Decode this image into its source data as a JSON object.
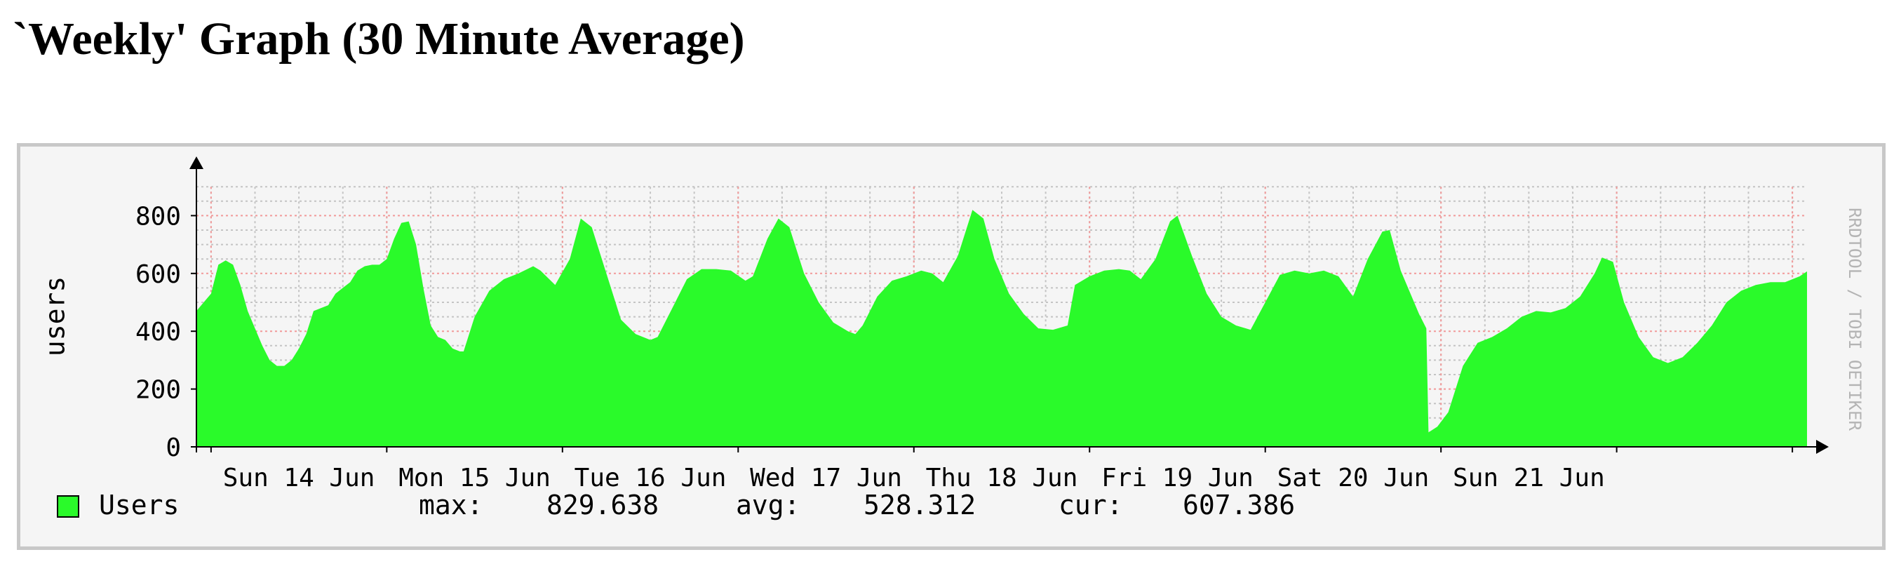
{
  "page": {
    "title": "`Weekly' Graph (30 Minute Average)"
  },
  "watermark": "RRDTOOL / TOBI OETIKER",
  "colors": {
    "area": "#2afa2a",
    "major_grid": "#f29999",
    "minor_grid": "#c4c4c4",
    "background": "#f5f5f5",
    "frame": "#c8c8c8",
    "axis": "#000000",
    "watermark": "#b4b4b4"
  },
  "legend": {
    "series_label": "Users",
    "max_label": "max:",
    "max_value": "829.638",
    "avg_label": "avg:",
    "avg_value": "528.312",
    "cur_label": "cur:",
    "cur_value": "607.386"
  },
  "chart_data": {
    "type": "area",
    "title": "`Weekly' Graph (30 Minute Average)",
    "ylabel": "users",
    "ylim": [
      0,
      900
    ],
    "yticks": [
      0,
      200,
      400,
      600,
      800
    ],
    "y_tick_labels": [
      "0",
      "200",
      "400",
      "600",
      "800"
    ],
    "x_day_labels": [
      "Sun 14 Jun",
      "Mon 15 Jun",
      "Tue 16 Jun",
      "Wed 17 Jun",
      "Thu 18 Jun",
      "Fri 19 Jun",
      "Sat 20 Jun",
      "Sun 21 Jun"
    ],
    "grid": true,
    "legend_position": "bottom-left",
    "series": [
      {
        "name": "Users",
        "color": "#2afa2a",
        "points": [
          [
            0,
            470
          ],
          [
            1,
            500
          ],
          [
            2,
            530
          ],
          [
            3,
            630
          ],
          [
            4,
            645
          ],
          [
            5,
            630
          ],
          [
            6,
            560
          ],
          [
            7,
            470
          ],
          [
            8,
            410
          ],
          [
            9,
            350
          ],
          [
            10,
            300
          ],
          [
            11,
            280
          ],
          [
            12,
            280
          ],
          [
            13,
            300
          ],
          [
            14,
            340
          ],
          [
            15,
            390
          ],
          [
            16,
            470
          ],
          [
            17,
            480
          ],
          [
            18,
            490
          ],
          [
            19,
            530
          ],
          [
            20,
            550
          ],
          [
            21,
            570
          ],
          [
            22,
            610
          ],
          [
            23,
            625
          ],
          [
            24,
            630
          ],
          [
            25,
            630
          ],
          [
            26,
            650
          ],
          [
            27,
            720
          ],
          [
            28,
            775
          ],
          [
            29,
            780
          ],
          [
            30,
            700
          ],
          [
            31,
            550
          ],
          [
            32,
            420
          ],
          [
            33,
            380
          ],
          [
            34,
            370
          ],
          [
            35,
            340
          ],
          [
            36,
            330
          ],
          [
            36.5,
            330
          ],
          [
            38,
            450
          ],
          [
            40,
            540
          ],
          [
            42,
            580
          ],
          [
            44,
            600
          ],
          [
            46,
            625
          ],
          [
            47,
            610
          ],
          [
            49,
            560
          ],
          [
            51,
            650
          ],
          [
            52.5,
            790
          ],
          [
            54,
            760
          ],
          [
            56,
            600
          ],
          [
            58,
            440
          ],
          [
            60,
            390
          ],
          [
            62,
            370
          ],
          [
            63,
            380
          ],
          [
            65,
            480
          ],
          [
            67,
            580
          ],
          [
            69,
            615
          ],
          [
            71,
            615
          ],
          [
            73,
            610
          ],
          [
            75,
            575
          ],
          [
            76,
            590
          ],
          [
            78,
            720
          ],
          [
            79.5,
            790
          ],
          [
            81,
            760
          ],
          [
            83,
            600
          ],
          [
            85,
            500
          ],
          [
            87,
            430
          ],
          [
            89,
            400
          ],
          [
            90,
            390
          ],
          [
            91,
            420
          ],
          [
            93,
            520
          ],
          [
            95,
            575
          ],
          [
            97,
            590
          ],
          [
            99,
            610
          ],
          [
            100.5,
            600
          ],
          [
            102,
            570
          ],
          [
            104,
            660
          ],
          [
            106,
            820
          ],
          [
            107.5,
            790
          ],
          [
            109,
            650
          ],
          [
            111,
            530
          ],
          [
            113,
            460
          ],
          [
            115,
            410
          ],
          [
            117,
            405
          ],
          [
            119,
            420
          ],
          [
            120,
            560
          ],
          [
            122,
            590
          ],
          [
            124,
            610
          ],
          [
            126,
            615
          ],
          [
            127.5,
            610
          ],
          [
            129,
            580
          ],
          [
            131,
            650
          ],
          [
            133,
            780
          ],
          [
            134,
            800
          ],
          [
            136,
            660
          ],
          [
            138,
            530
          ],
          [
            140,
            450
          ],
          [
            142,
            420
          ],
          [
            144,
            405
          ],
          [
            146,
            500
          ],
          [
            148,
            595
          ],
          [
            150,
            610
          ],
          [
            152,
            600
          ],
          [
            154,
            610
          ],
          [
            156,
            590
          ],
          [
            158,
            520
          ],
          [
            160,
            650
          ],
          [
            162,
            745
          ],
          [
            163,
            750
          ],
          [
            164.5,
            610
          ],
          [
            167,
            460
          ],
          [
            168,
            410
          ],
          [
            168.3,
            50
          ],
          [
            169.5,
            70
          ],
          [
            171,
            120
          ],
          [
            173,
            280
          ],
          [
            175,
            360
          ],
          [
            177,
            380
          ],
          [
            179,
            410
          ],
          [
            181,
            450
          ],
          [
            183,
            470
          ],
          [
            185,
            465
          ],
          [
            187,
            480
          ],
          [
            189,
            520
          ],
          [
            191,
            600
          ],
          [
            192,
            655
          ],
          [
            193.5,
            640
          ],
          [
            195,
            500
          ],
          [
            197,
            380
          ],
          [
            199,
            310
          ],
          [
            201,
            290
          ],
          [
            203,
            310
          ],
          [
            205,
            360
          ],
          [
            207,
            420
          ],
          [
            209,
            500
          ],
          [
            211,
            540
          ],
          [
            213,
            560
          ],
          [
            215,
            570
          ],
          [
            217,
            570
          ],
          [
            219,
            590
          ],
          [
            220,
            607
          ]
        ]
      }
    ]
  }
}
